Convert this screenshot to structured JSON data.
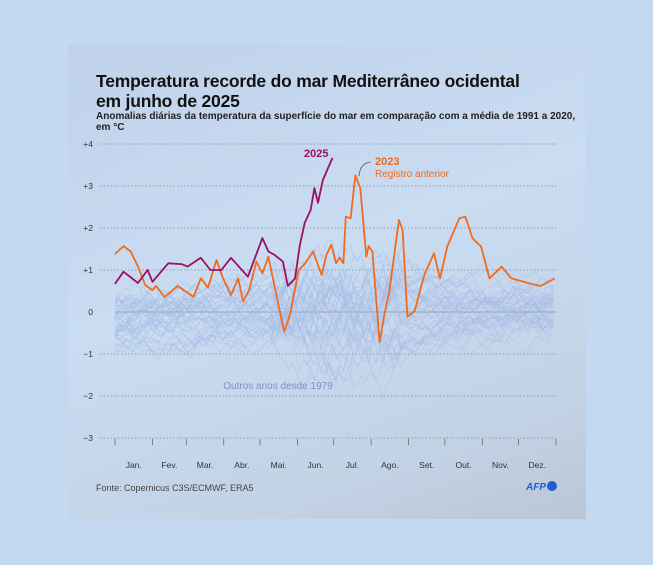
{
  "title_line1": "Temperatura recorde do mar Mediterrâneo ocidental",
  "title_line2": "em junho de 2025",
  "subtitle": "Anomalias diárias da temperatura da superfície do mar em comparação com a média de 1991 a 2020, em °C",
  "source": "Fonte: Copernicus C3S/ECMWF, ERA5",
  "logo": "AFP",
  "chart_data": {
    "type": "line",
    "xlabel": "",
    "ylabel": "",
    "ylim": [
      -3,
      4
    ],
    "xlim_days": [
      0,
      365
    ],
    "grid": true,
    "y_ticks": [
      "+4",
      "+3",
      "+2",
      "+1",
      "0",
      "−1",
      "−2",
      "−3"
    ],
    "y_tick_values": [
      4,
      3,
      2,
      1,
      0,
      -1,
      -2,
      -3
    ],
    "months": [
      "Jan.",
      "Fev.",
      "Mar.",
      "Abr.",
      "Mai.",
      "Jun.",
      "Jul.",
      "Ago.",
      "Set.",
      "Out.",
      "Nov.",
      "Dez."
    ],
    "colors": {
      "y2025": "#9c1060",
      "y2023": "#f26a1c",
      "others": "#a8bce6"
    },
    "series": [
      {
        "name": "2025",
        "x_day_of_year": [
          0,
          7,
          19,
          27,
          31,
          44,
          55,
          60,
          71,
          79,
          88,
          96,
          110,
          122,
          127,
          132,
          139,
          143,
          149,
          153,
          157,
          162,
          165,
          168,
          172,
          180
        ],
        "values": [
          0.67,
          0.96,
          0.69,
          1.0,
          0.72,
          1.16,
          1.14,
          1.08,
          1.29,
          1.0,
          1.0,
          1.29,
          0.84,
          1.76,
          1.44,
          1.36,
          1.2,
          0.62,
          0.8,
          1.6,
          2.12,
          2.43,
          2.95,
          2.6,
          3.14,
          3.67
        ]
      },
      {
        "name": "2023",
        "annotation": "Registro anterior",
        "x_day_of_year": [
          0,
          7,
          13,
          19,
          25,
          31,
          34,
          41,
          52,
          65,
          71,
          77,
          84,
          89,
          96,
          102,
          106,
          111,
          117,
          122,
          127,
          132,
          140,
          145,
          152,
          157,
          164,
          171,
          175,
          179,
          183,
          186,
          189,
          191,
          195,
          199,
          203,
          208,
          210,
          213,
          219,
          223,
          227,
          235,
          238,
          242,
          248,
          256,
          264,
          269,
          275,
          285,
          290,
          296,
          303,
          310,
          320,
          328,
          342,
          352,
          364
        ],
        "values": [
          1.38,
          1.57,
          1.44,
          1.08,
          0.64,
          0.52,
          0.62,
          0.36,
          0.62,
          0.36,
          0.8,
          0.58,
          1.24,
          0.83,
          0.4,
          0.8,
          0.25,
          0.52,
          1.2,
          0.92,
          1.32,
          0.62,
          -0.47,
          -0.05,
          1.0,
          1.14,
          1.44,
          0.88,
          1.36,
          1.6,
          1.16,
          1.3,
          1.16,
          2.27,
          2.23,
          3.25,
          2.95,
          1.32,
          1.57,
          1.44,
          -0.72,
          -0.05,
          0.48,
          2.19,
          1.95,
          -0.11,
          0.02,
          0.88,
          1.4,
          0.8,
          1.56,
          2.23,
          2.27,
          1.75,
          1.56,
          0.8,
          1.08,
          0.8,
          0.69,
          0.62,
          0.8
        ]
      },
      {
        "name": "Outros anos desde 1979",
        "note": "about 44 faint background lines, mostly between −1 and +1, dipping to about −3 in June/July"
      }
    ]
  }
}
